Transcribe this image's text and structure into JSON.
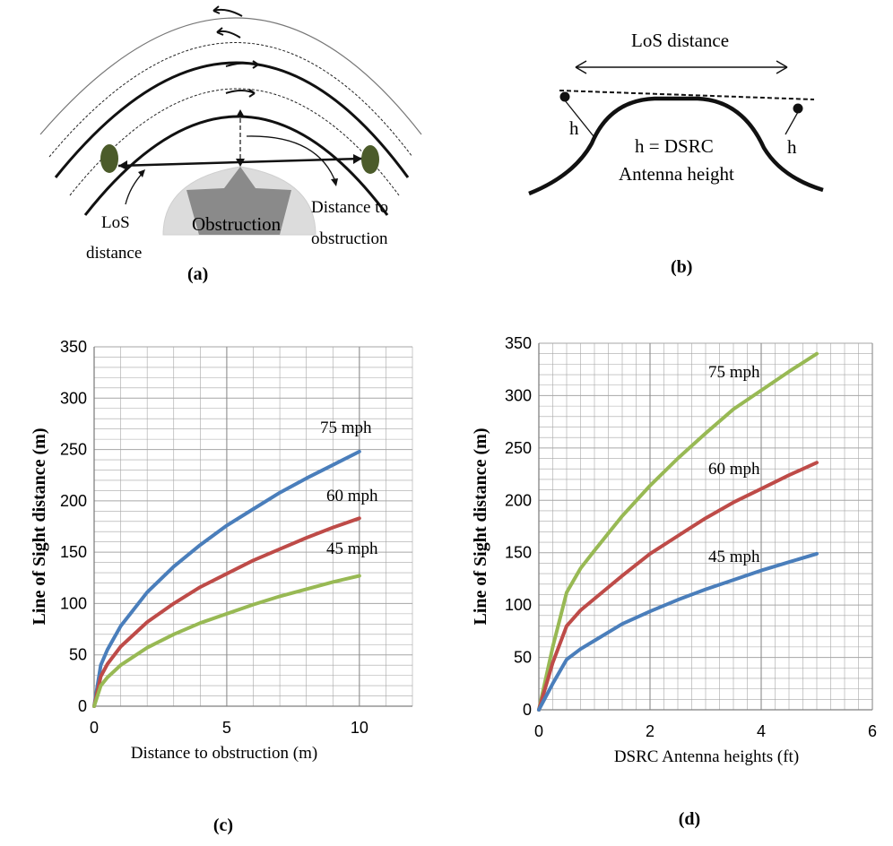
{
  "panel_a": {
    "caption": "(a)",
    "los_label_line1": "LoS",
    "los_label_line2": "distance",
    "obstruction_label": "Obstruction",
    "distance_label_line1": "Distance to",
    "distance_label_line2": "obstruction"
  },
  "panel_b": {
    "caption": "(b)",
    "los_label": "LoS distance",
    "h_left": "h",
    "h_right": "h",
    "definition_line1": "h = DSRC",
    "definition_line2": "Antenna height"
  },
  "colors": {
    "blue": "#4a7ebb",
    "red": "#be4b48",
    "green": "#98b954",
    "grid": "#a6a6a6"
  },
  "chart_data": [
    {
      "type": "line",
      "caption": "(c)",
      "xlabel": "Distance to obstruction (m)",
      "ylabel": "Line of Sight distance (m)",
      "xlim": [
        0,
        12
      ],
      "ylim": [
        0,
        350
      ],
      "xticks": [
        0,
        5,
        10
      ],
      "yticks": [
        0,
        50,
        100,
        150,
        200,
        250,
        300,
        350
      ],
      "grid": true,
      "series": [
        {
          "name": "75 mph",
          "color": "#4a7ebb",
          "x": [
            0,
            0.25,
            0.5,
            1,
            2,
            3,
            4,
            5,
            6,
            7,
            8,
            9,
            10
          ],
          "y": [
            0,
            40,
            55,
            78,
            111,
            136,
            157,
            176,
            192,
            208,
            222,
            235,
            248
          ]
        },
        {
          "name": "60 mph",
          "color": "#be4b48",
          "x": [
            0,
            0.25,
            0.5,
            1,
            2,
            3,
            4,
            5,
            6,
            7,
            8,
            9,
            10
          ],
          "y": [
            0,
            29,
            41,
            58,
            82,
            100,
            116,
            129,
            142,
            153,
            164,
            174,
            183
          ]
        },
        {
          "name": "45 mph",
          "color": "#98b954",
          "x": [
            0,
            0.25,
            0.5,
            1,
            2,
            3,
            4,
            5,
            6,
            7,
            8,
            9,
            10
          ],
          "y": [
            0,
            20,
            28,
            40,
            57,
            70,
            81,
            90,
            99,
            107,
            114,
            121,
            127
          ]
        }
      ]
    },
    {
      "type": "line",
      "caption": "(d)",
      "xlabel": "DSRC Antenna heights (ft)",
      "ylabel": "Line of Sight distance (m)",
      "xlim": [
        0,
        6
      ],
      "ylim": [
        0,
        350
      ],
      "xticks": [
        0,
        2,
        4,
        6
      ],
      "yticks": [
        0,
        50,
        100,
        150,
        200,
        250,
        300,
        350
      ],
      "grid": true,
      "series": [
        {
          "name": "75 mph",
          "color": "#98b954",
          "x": [
            0,
            0.25,
            0.5,
            0.75,
            1,
            1.5,
            2,
            2.5,
            3,
            3.5,
            4,
            4.5,
            5
          ],
          "y": [
            0,
            60,
            112,
            135,
            152,
            185,
            214,
            240,
            264,
            287,
            305,
            323,
            340
          ]
        },
        {
          "name": "60 mph",
          "color": "#be4b48",
          "x": [
            0,
            0.25,
            0.5,
            0.75,
            1,
            1.5,
            2,
            2.5,
            3,
            3.5,
            4,
            4.5,
            5
          ],
          "y": [
            0,
            45,
            80,
            95,
            106,
            128,
            149,
            166,
            183,
            198,
            211,
            224,
            236
          ]
        },
        {
          "name": "45 mph",
          "color": "#4a7ebb",
          "x": [
            0,
            0.25,
            0.5,
            0.75,
            1,
            1.5,
            2,
            2.5,
            3,
            3.5,
            4,
            4.5,
            5
          ],
          "y": [
            0,
            25,
            48,
            58,
            66,
            82,
            94,
            105,
            115,
            124,
            133,
            141,
            149
          ]
        }
      ]
    }
  ]
}
